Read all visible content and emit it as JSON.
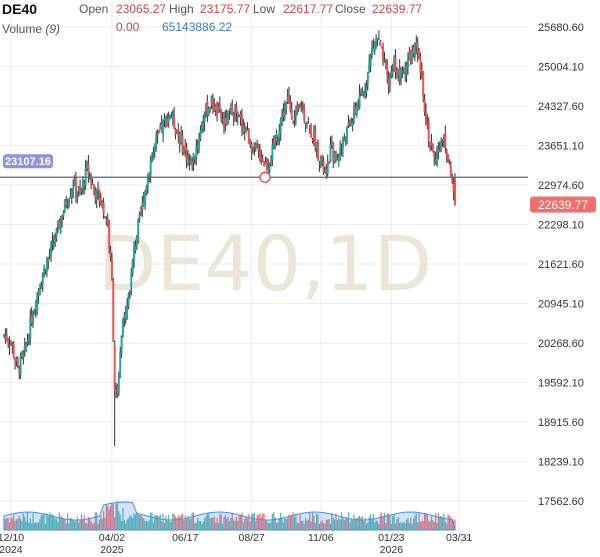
{
  "header": {
    "ticker": "DE40",
    "open_label": "Open",
    "open": "23065.27",
    "high_label": "High",
    "high": "23175.77",
    "low_label": "Low",
    "low": "22617.77",
    "close_label": "Close",
    "close": "22639.77",
    "volume_label": "Volume",
    "volume_period": "(9)",
    "volume_value": "0.00",
    "volume_ma": "65143886.22"
  },
  "watermark": "DE40,1D",
  "chart_data": {
    "type": "candlestick",
    "title": "DE40",
    "timeframe": "1D",
    "y_ticks": [
      "25680.60",
      "25004.10",
      "24327.60",
      "23651.10",
      "22974.60",
      "22298.10",
      "21621.60",
      "20945.10",
      "20268.60",
      "19592.10",
      "18915.60",
      "18239.10",
      "17562.60"
    ],
    "ylim": [
      17100,
      26100
    ],
    "x_ticks": [
      {
        "label": "12/10",
        "sub": "2024",
        "t": 5
      },
      {
        "label": "04/02",
        "sub": "2025",
        "t": 78
      },
      {
        "label": "06/17",
        "sub": "",
        "t": 131
      },
      {
        "label": "08/27",
        "sub": "",
        "t": 179
      },
      {
        "label": "11/06",
        "sub": "",
        "t": 229
      },
      {
        "label": "01/23",
        "sub": "2026",
        "t": 280
      },
      {
        "label": "03/31",
        "sub": "",
        "t": 329
      }
    ],
    "x_range": [
      0,
      345
    ],
    "horizontal_line": {
      "value": 23107.16,
      "label": "23107.16"
    },
    "last_price": {
      "value": 22639.77,
      "label": "22639.77"
    },
    "colors": {
      "up": "#26a69a",
      "down": "#ef5350",
      "wick": "#333333",
      "volume": "#4a90e2",
      "hline": "#5b5ea6",
      "hline_label_bg": "#8f93e0",
      "last_label_bg": "#f26d6d"
    },
    "close_path": [
      [
        0,
        20400
      ],
      [
        5,
        20300
      ],
      [
        10,
        19800
      ],
      [
        15,
        20100
      ],
      [
        20,
        20700
      ],
      [
        25,
        21200
      ],
      [
        30,
        21600
      ],
      [
        35,
        21900
      ],
      [
        40,
        22300
      ],
      [
        45,
        22700
      ],
      [
        50,
        23000
      ],
      [
        55,
        22800
      ],
      [
        60,
        23250
      ],
      [
        65,
        22900
      ],
      [
        70,
        22700
      ],
      [
        75,
        22300
      ],
      [
        78,
        21300
      ],
      [
        80,
        19500
      ],
      [
        82,
        19300
      ],
      [
        85,
        20400
      ],
      [
        90,
        21100
      ],
      [
        95,
        22000
      ],
      [
        100,
        22600
      ],
      [
        105,
        23300
      ],
      [
        110,
        23700
      ],
      [
        115,
        24000
      ],
      [
        120,
        24200
      ],
      [
        125,
        23900
      ],
      [
        130,
        23600
      ],
      [
        135,
        23300
      ],
      [
        140,
        23700
      ],
      [
        145,
        24200
      ],
      [
        150,
        24400
      ],
      [
        155,
        24200
      ],
      [
        160,
        24000
      ],
      [
        165,
        24300
      ],
      [
        170,
        24100
      ],
      [
        175,
        23900
      ],
      [
        180,
        23600
      ],
      [
        185,
        23500
      ],
      [
        190,
        23300
      ],
      [
        195,
        23600
      ],
      [
        200,
        24100
      ],
      [
        205,
        24400
      ],
      [
        210,
        24100
      ],
      [
        215,
        24300
      ],
      [
        220,
        24000
      ],
      [
        225,
        23700
      ],
      [
        230,
        23300
      ],
      [
        233,
        23100
      ],
      [
        236,
        23600
      ],
      [
        240,
        23400
      ],
      [
        245,
        23700
      ],
      [
        250,
        24000
      ],
      [
        255,
        24300
      ],
      [
        260,
        24600
      ],
      [
        263,
        24900
      ],
      [
        266,
        25300
      ],
      [
        270,
        25500
      ],
      [
        274,
        25100
      ],
      [
        278,
        24700
      ],
      [
        282,
        25100
      ],
      [
        286,
        24800
      ],
      [
        290,
        25000
      ],
      [
        294,
        25200
      ],
      [
        298,
        25300
      ],
      [
        302,
        24800
      ],
      [
        305,
        24100
      ],
      [
        308,
        23700
      ],
      [
        311,
        23400
      ],
      [
        314,
        23600
      ],
      [
        317,
        23800
      ],
      [
        320,
        23500
      ],
      [
        323,
        23200
      ],
      [
        326,
        22640
      ]
    ]
  }
}
